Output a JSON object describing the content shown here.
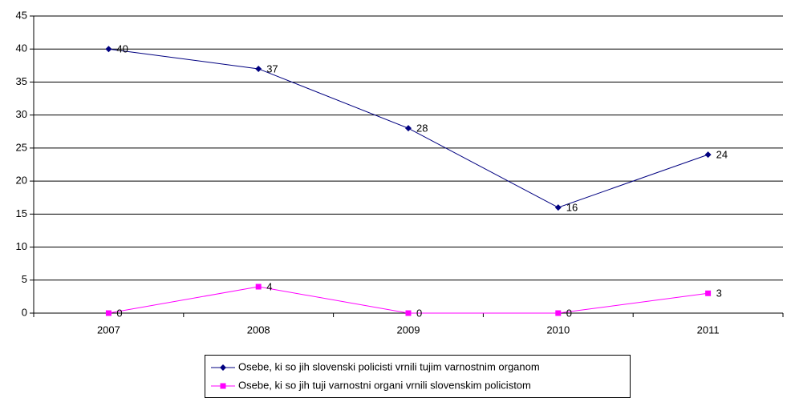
{
  "chart_data": {
    "type": "line",
    "categories": [
      "2007",
      "2008",
      "2009",
      "2010",
      "2011"
    ],
    "series": [
      {
        "name": "Osebe, ki so jih slovenski policisti vrnili tujim varnostnim organom",
        "color": "#000080",
        "marker": "diamond",
        "values": [
          40,
          37,
          28,
          16,
          24
        ]
      },
      {
        "name": "Osebe, ki so jih tuji varnostni organi vrnili slovenskim policistom",
        "color": "#ff00ff",
        "marker": "square",
        "values": [
          0,
          4,
          0,
          0,
          3
        ]
      }
    ],
    "ylim": [
      0,
      45
    ],
    "yticks": [
      0,
      5,
      10,
      15,
      20,
      25,
      30,
      35,
      40,
      45
    ],
    "grid": true,
    "legend": "bottom"
  }
}
